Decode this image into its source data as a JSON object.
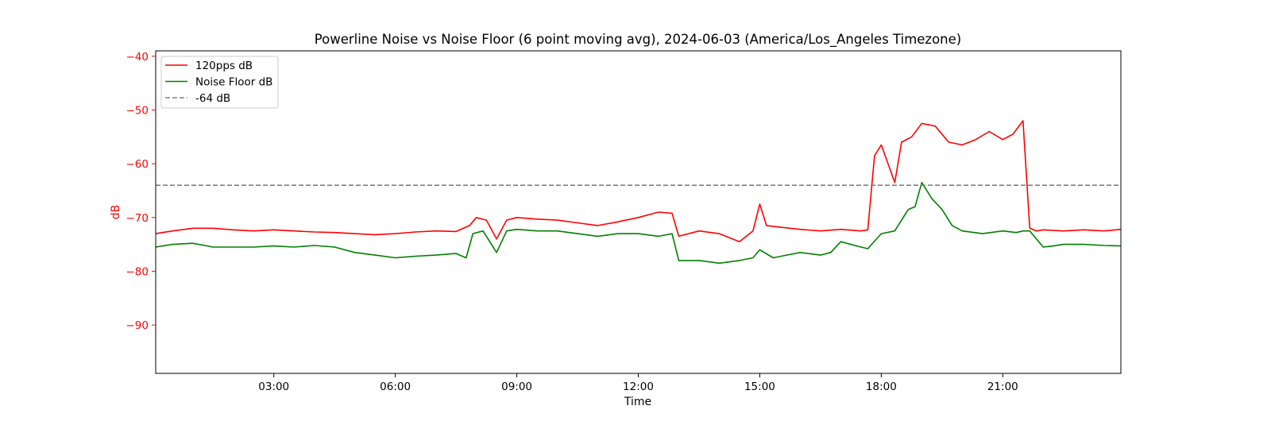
{
  "chart_data": {
    "type": "line",
    "title": "Powerline Noise vs Noise Floor (6 point moving avg), 2024-06-03 (America/Los_Angeles Timezone)",
    "xlabel": "Time",
    "ylabel": "dB",
    "ylabel_color": "#ff0000",
    "ytick_color": "#ff0000",
    "xlim": [
      "00:05",
      "23:55"
    ],
    "ylim": [
      -99,
      -39
    ],
    "x_ticks": [
      "03:00",
      "06:00",
      "09:00",
      "12:00",
      "15:00",
      "18:00",
      "21:00"
    ],
    "y_ticks": [
      -40,
      -50,
      -60,
      -70,
      -80,
      -90
    ],
    "y_tick_labels": [
      "−40",
      "−50",
      "−60",
      "−70",
      "−80",
      "−90"
    ],
    "grid": false,
    "legend_position": "upper-left",
    "series": [
      {
        "name": "120pps dB",
        "color": "#ff0000",
        "style": "solid",
        "x": [
          "00:05",
          "00:30",
          "01:00",
          "01:30",
          "02:00",
          "02:30",
          "03:00",
          "03:30",
          "04:00",
          "04:30",
          "05:00",
          "05:30",
          "06:00",
          "06:30",
          "07:00",
          "07:30",
          "07:50",
          "08:00",
          "08:15",
          "08:30",
          "08:45",
          "09:00",
          "09:30",
          "10:00",
          "10:30",
          "11:00",
          "11:30",
          "12:00",
          "12:30",
          "12:50",
          "13:00",
          "13:30",
          "14:00",
          "14:30",
          "14:50",
          "15:00",
          "15:10",
          "15:30",
          "16:00",
          "16:30",
          "17:00",
          "17:30",
          "17:40",
          "17:50",
          "18:00",
          "18:10",
          "18:20",
          "18:30",
          "18:45",
          "19:00",
          "19:20",
          "19:40",
          "20:00",
          "20:20",
          "20:40",
          "21:00",
          "21:15",
          "21:30",
          "21:40",
          "21:50",
          "22:00",
          "22:30",
          "23:00",
          "23:30",
          "23:55"
        ],
        "values": [
          -73,
          -72.5,
          -72,
          -72,
          -72.3,
          -72.5,
          -72.3,
          -72.5,
          -72.7,
          -72.8,
          -73,
          -73.2,
          -73,
          -72.7,
          -72.5,
          -72.6,
          -71.5,
          -70,
          -70.5,
          -74,
          -70.5,
          -70,
          -70.3,
          -70.5,
          -71,
          -71.5,
          -70.8,
          -70,
          -69,
          -69.2,
          -73.5,
          -72.5,
          -73,
          -74.5,
          -72.5,
          -67.5,
          -71.5,
          -71.8,
          -72.2,
          -72.5,
          -72.2,
          -72.5,
          -72.3,
          -58.5,
          -56.5,
          -60,
          -63.5,
          -56,
          -55,
          -52.5,
          -53,
          -56,
          -56.5,
          -55.5,
          -54,
          -55.5,
          -54.5,
          -52,
          -72,
          -72.5,
          -72.3,
          -72.5,
          -72.3,
          -72.5,
          -72.2
        ]
      },
      {
        "name": "Noise Floor dB",
        "color": "#008000",
        "style": "solid",
        "x": [
          "00:05",
          "00:30",
          "01:00",
          "01:30",
          "02:00",
          "02:30",
          "03:00",
          "03:30",
          "04:00",
          "04:30",
          "05:00",
          "05:30",
          "06:00",
          "06:30",
          "07:00",
          "07:30",
          "07:45",
          "07:55",
          "08:10",
          "08:30",
          "08:45",
          "09:00",
          "09:30",
          "10:00",
          "10:30",
          "11:00",
          "11:30",
          "12:00",
          "12:30",
          "12:50",
          "13:00",
          "13:30",
          "14:00",
          "14:30",
          "14:50",
          "15:00",
          "15:20",
          "15:40",
          "16:00",
          "16:30",
          "16:45",
          "17:00",
          "17:30",
          "17:40",
          "18:00",
          "18:20",
          "18:40",
          "18:50",
          "19:00",
          "19:15",
          "19:30",
          "19:45",
          "20:00",
          "20:30",
          "21:00",
          "21:20",
          "21:30",
          "21:40",
          "22:00",
          "22:15",
          "22:30",
          "23:00",
          "23:30",
          "23:55"
        ],
        "values": [
          -75.5,
          -75,
          -74.8,
          -75.5,
          -75.5,
          -75.5,
          -75.3,
          -75.5,
          -75.2,
          -75.5,
          -76.5,
          -77,
          -77.5,
          -77.2,
          -77,
          -76.7,
          -77.5,
          -73,
          -72.5,
          -76.5,
          -72.5,
          -72.2,
          -72.5,
          -72.5,
          -73,
          -73.5,
          -73,
          -73,
          -73.5,
          -73,
          -78,
          -78,
          -78.5,
          -78,
          -77.5,
          -76,
          -77.5,
          -77,
          -76.5,
          -77,
          -76.5,
          -74.5,
          -75.5,
          -75.8,
          -73,
          -72.5,
          -68.5,
          -68,
          -63.5,
          -66.5,
          -68.5,
          -71.5,
          -72.5,
          -73,
          -72.5,
          -72.8,
          -72.5,
          -72.5,
          -75.5,
          -75.3,
          -75,
          -75,
          -75.2,
          -75.3
        ]
      },
      {
        "name": "-64 dB",
        "color": "#808080",
        "style": "dashed",
        "x": [
          "00:05",
          "23:55"
        ],
        "values": [
          -64,
          -64
        ]
      }
    ]
  }
}
